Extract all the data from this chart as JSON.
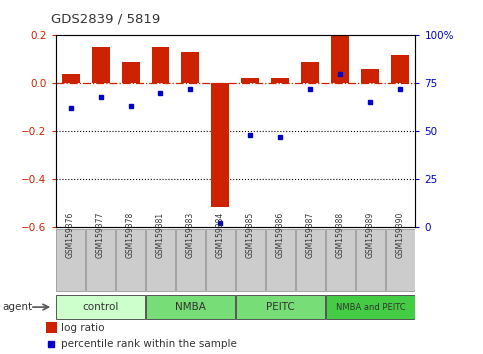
{
  "title": "GDS2839 / 5819",
  "samples": [
    "GSM159376",
    "GSM159377",
    "GSM159378",
    "GSM159381",
    "GSM159383",
    "GSM159384",
    "GSM159385",
    "GSM159386",
    "GSM159387",
    "GSM159388",
    "GSM159389",
    "GSM159390"
  ],
  "log_ratio": [
    0.04,
    0.15,
    0.09,
    0.15,
    0.13,
    -0.52,
    0.02,
    0.02,
    0.09,
    0.2,
    0.06,
    0.12
  ],
  "percentile_rank": [
    62,
    68,
    63,
    70,
    72,
    2,
    48,
    47,
    72,
    80,
    65,
    72
  ],
  "groups": [
    {
      "label": "control",
      "start": 0,
      "end": 3,
      "color": "#ccffcc"
    },
    {
      "label": "NMBA",
      "start": 3,
      "end": 6,
      "color": "#77dd77"
    },
    {
      "label": "PEITC",
      "start": 6,
      "end": 9,
      "color": "#77dd77"
    },
    {
      "label": "NMBA and PEITC",
      "start": 9,
      "end": 12,
      "color": "#44cc44"
    }
  ],
  "bar_color": "#cc2200",
  "dot_color": "#0000cc",
  "ref_line_color": "#cc2200",
  "dotted_line_color": "#000000",
  "ylim_left": [
    -0.6,
    0.2
  ],
  "ylim_right": [
    0,
    100
  ],
  "yticks_left": [
    -0.6,
    -0.4,
    -0.2,
    0.0,
    0.2
  ],
  "yticks_right": [
    0,
    25,
    50,
    75,
    100
  ],
  "bg_color": "#ffffff",
  "plot_bg": "#ffffff"
}
